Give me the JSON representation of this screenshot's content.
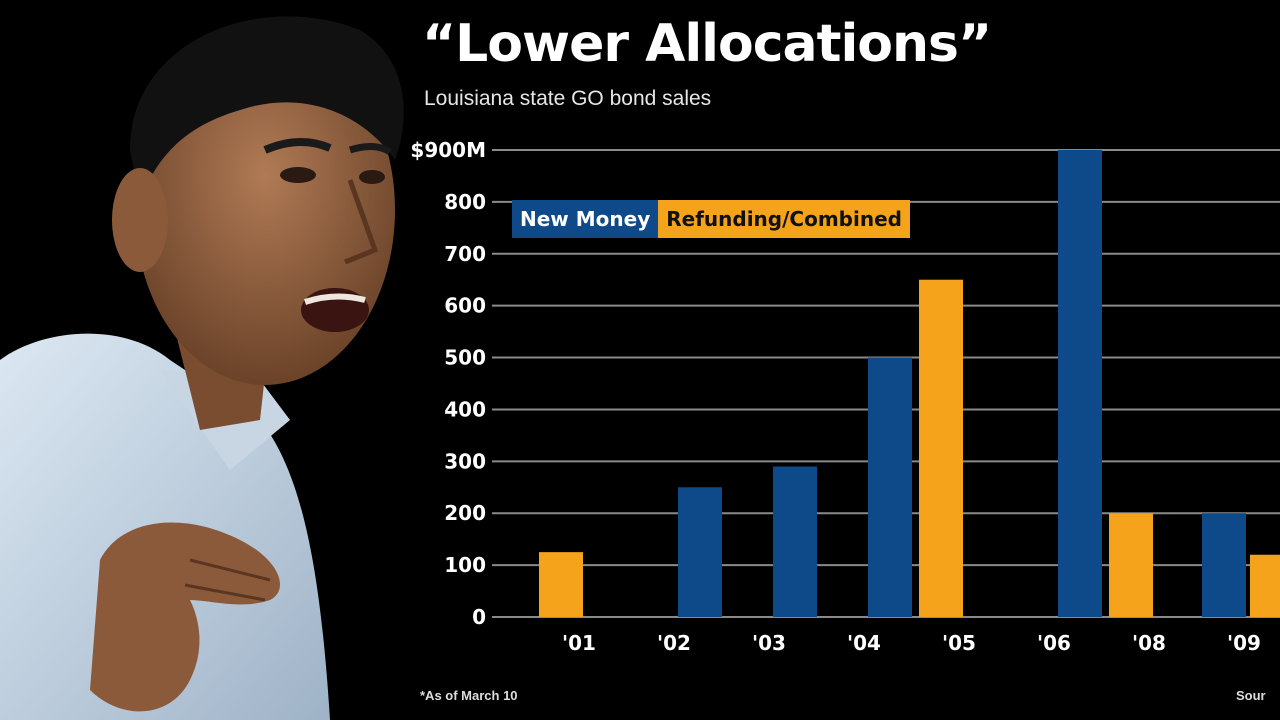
{
  "chart_data": {
    "type": "bar",
    "title": "“Lower Allocations”",
    "subtitle": "Louisiana state GO bond sales",
    "categories": [
      "'01",
      "'02",
      "'03",
      "'04",
      "'05",
      "'06",
      "'08",
      "'09"
    ],
    "series": [
      {
        "name": "New Money",
        "values": [
          0,
          250,
          290,
          500,
          0,
          900,
          0,
          200
        ]
      },
      {
        "name": "Refunding/Combined",
        "values": [
          125,
          0,
          0,
          0,
          650,
          0,
          200,
          120
        ]
      }
    ],
    "y_ticks": [
      "0",
      "100",
      "200",
      "300",
      "400",
      "500",
      "600",
      "700",
      "800",
      "$900M"
    ],
    "ylim": [
      0,
      900
    ],
    "grid": true,
    "legend_position": "top-left",
    "footnote": "*As of March 10",
    "source": "Sour"
  },
  "colors": {
    "new_money": "#0e4a8a",
    "refunding": "#f5a31a",
    "gridline": "#8a8a8a"
  }
}
